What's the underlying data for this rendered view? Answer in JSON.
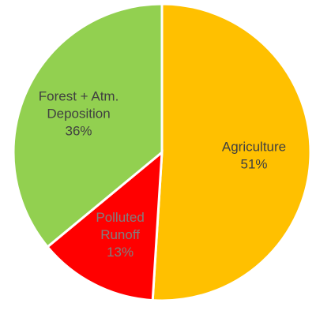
{
  "chart_data": {
    "type": "pie",
    "title": "",
    "slices": [
      {
        "name": "Agriculture",
        "label_lines": [
          "Agriculture"
        ],
        "value": 51,
        "value_label": "51%",
        "color": "#FFC000",
        "label_color": "#404040"
      },
      {
        "name": "Polluted Runoff",
        "label_lines": [
          "Polluted",
          "Runoff"
        ],
        "value": 13,
        "value_label": "13%",
        "color": "#FF0000",
        "label_color": "#7F7F7F"
      },
      {
        "name": "Forest + Atm. Deposition",
        "label_lines": [
          "Forest + Atm.",
          "Deposition"
        ],
        "value": 36,
        "value_label": "36%",
        "color": "#92D050",
        "label_color": "#404040"
      }
    ],
    "start_angle": "top",
    "direction": "clockwise",
    "legend": "none",
    "data_labels": "inside"
  }
}
